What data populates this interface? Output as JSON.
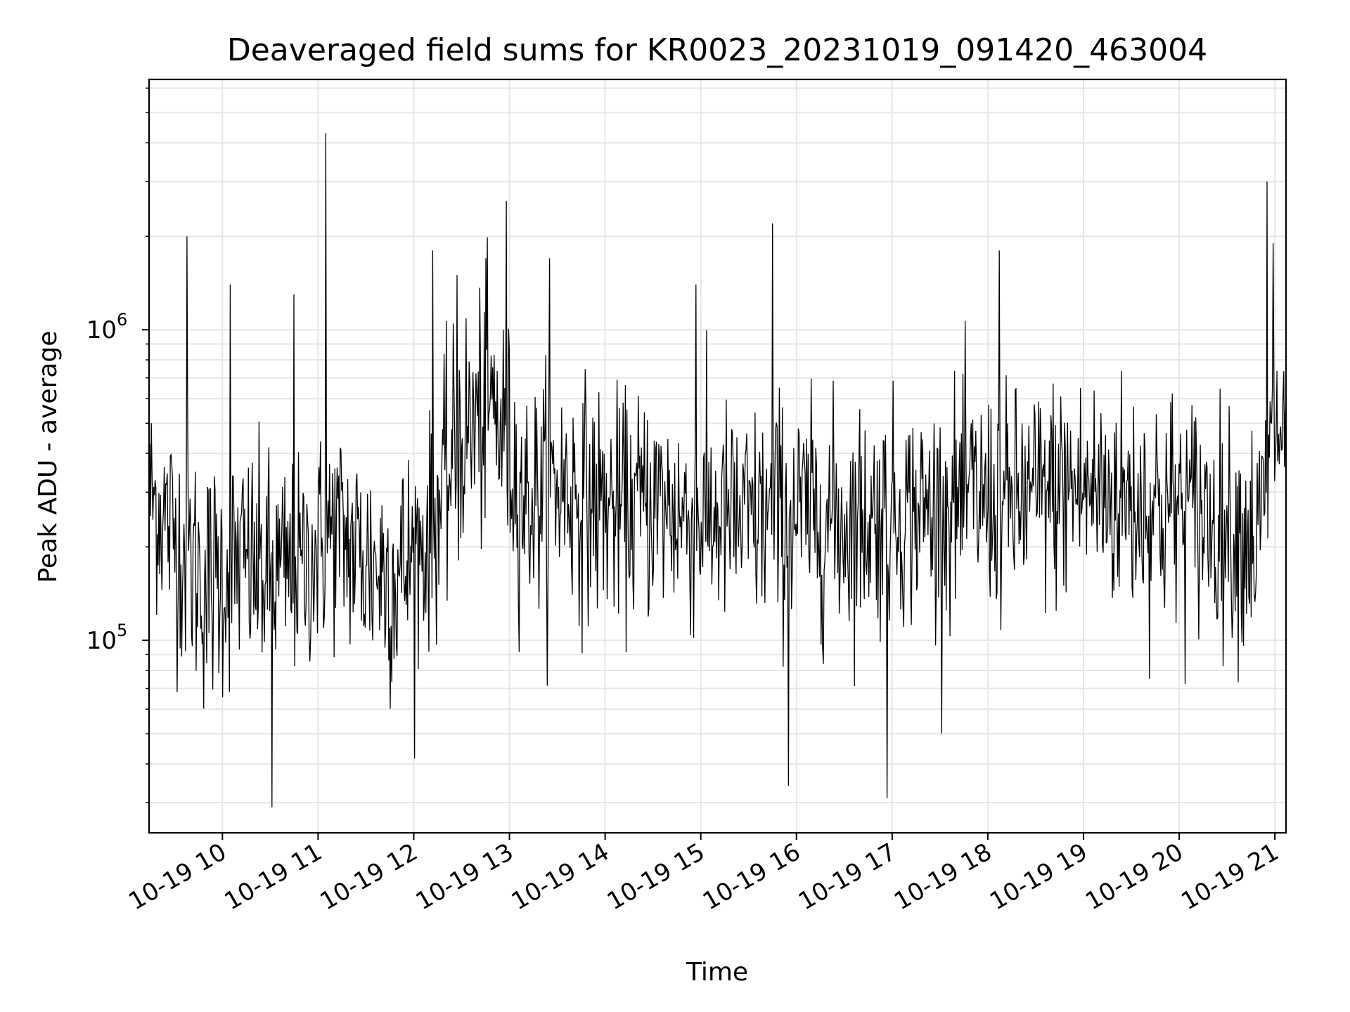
{
  "chart_data": {
    "type": "line",
    "title": "Deaveraged field sums for KR0023_20231019_091420_463004",
    "xlabel": "Time",
    "ylabel": "Peak ADU - average",
    "yscale": "log",
    "ylim": [
      24000,
      6400000
    ],
    "xlim": [
      "2023-10-19 09:14",
      "2023-10-19 21:07"
    ],
    "x_ticks": [
      {
        "time": "2023-10-19 10:00",
        "label": "10-19 10"
      },
      {
        "time": "2023-10-19 11:00",
        "label": "10-19 11"
      },
      {
        "time": "2023-10-19 12:00",
        "label": "10-19 12"
      },
      {
        "time": "2023-10-19 13:00",
        "label": "10-19 13"
      },
      {
        "time": "2023-10-19 14:00",
        "label": "10-19 14"
      },
      {
        "time": "2023-10-19 15:00",
        "label": "10-19 15"
      },
      {
        "time": "2023-10-19 16:00",
        "label": "10-19 16"
      },
      {
        "time": "2023-10-19 17:00",
        "label": "10-19 17"
      },
      {
        "time": "2023-10-19 18:00",
        "label": "10-19 18"
      },
      {
        "time": "2023-10-19 19:00",
        "label": "10-19 19"
      },
      {
        "time": "2023-10-19 20:00",
        "label": "10-19 20"
      },
      {
        "time": "2023-10-19 21:00",
        "label": "10-19 21"
      }
    ],
    "y_ticks": [
      {
        "value": 100000,
        "base": "10",
        "exp": "5"
      },
      {
        "value": 1000000,
        "base": "10",
        "exp": "6"
      }
    ],
    "grid": true,
    "line_color": "#000000",
    "grid_color": "#e6e6e6",
    "series": [
      {
        "x": [
          "2023-10-19 09:14",
          "2023-10-19 09:30",
          "2023-10-19 09:50",
          "2023-10-19 10:10",
          "2023-10-19 10:30",
          "2023-10-19 10:50",
          "2023-10-19 11:10",
          "2023-10-19 11:30",
          "2023-10-19 11:50",
          "2023-10-19 12:10",
          "2023-10-19 12:30",
          "2023-10-19 12:50",
          "2023-10-19 13:10",
          "2023-10-19 13:30",
          "2023-10-19 13:50",
          "2023-10-19 14:10",
          "2023-10-19 14:30",
          "2023-10-19 14:50",
          "2023-10-19 15:10",
          "2023-10-19 15:30",
          "2023-10-19 15:50",
          "2023-10-19 16:10",
          "2023-10-19 16:30",
          "2023-10-19 16:50",
          "2023-10-19 17:10",
          "2023-10-19 17:30",
          "2023-10-19 17:50",
          "2023-10-19 18:10",
          "2023-10-19 18:30",
          "2023-10-19 18:50",
          "2023-10-19 19:10",
          "2023-10-19 19:30",
          "2023-10-19 19:50",
          "2023-10-19 20:10",
          "2023-10-19 20:30",
          "2023-10-19 20:50",
          "2023-10-19 21:00",
          "2023-10-19 21:07"
        ],
        "y": [
          300000,
          220000,
          150000,
          180000,
          160000,
          170000,
          230000,
          180000,
          160000,
          220000,
          450000,
          560000,
          280000,
          320000,
          280000,
          260000,
          280000,
          250000,
          250000,
          240000,
          260000,
          250000,
          240000,
          250000,
          260000,
          260000,
          290000,
          270000,
          290000,
          310000,
          300000,
          280000,
          270000,
          260000,
          230000,
          210000,
          500000,
          450000
        ],
        "envelope_low": [
          140000,
          90000,
          60000,
          70000,
          60000,
          80000,
          90000,
          70000,
          60000,
          90000,
          150000,
          180000,
          110000,
          130000,
          110000,
          100000,
          100000,
          90000,
          90000,
          90000,
          90000,
          90000,
          80000,
          90000,
          100000,
          100000,
          110000,
          110000,
          110000,
          120000,
          110000,
          100000,
          90000,
          90000,
          90000,
          80000,
          200000,
          180000
        ],
        "envelope_high": [
          700000,
          550000,
          450000,
          430000,
          400000,
          420000,
          520000,
          480000,
          420000,
          500000,
          1100000,
          1300000,
          650000,
          800000,
          700000,
          560000,
          600000,
          550000,
          520000,
          520000,
          560000,
          520000,
          500000,
          520000,
          560000,
          560000,
          650000,
          620000,
          650000,
          720000,
          700000,
          650000,
          620000,
          560000,
          520000,
          500000,
          1100000,
          1000000
        ],
        "spikes": [
          {
            "time": "2023-10-19 09:38",
            "value": 2000000
          },
          {
            "time": "2023-10-19 10:05",
            "value": 1400000
          },
          {
            "time": "2023-10-19 10:31",
            "value": 29000
          },
          {
            "time": "2023-10-19 10:45",
            "value": 1300000
          },
          {
            "time": "2023-10-19 11:05",
            "value": 4300000
          },
          {
            "time": "2023-10-19 12:12",
            "value": 1800000
          },
          {
            "time": "2023-10-19 12:27",
            "value": 1500000
          },
          {
            "time": "2023-10-19 12:45",
            "value": 1700000
          },
          {
            "time": "2023-10-19 12:58",
            "value": 2600000
          },
          {
            "time": "2023-10-19 13:25",
            "value": 1700000
          },
          {
            "time": "2023-10-19 14:57",
            "value": 1400000
          },
          {
            "time": "2023-10-19 15:45",
            "value": 2200000
          },
          {
            "time": "2023-10-19 15:55",
            "value": 34000
          },
          {
            "time": "2023-10-19 16:57",
            "value": 31000
          },
          {
            "time": "2023-10-19 18:07",
            "value": 1800000
          },
          {
            "time": "2023-10-19 20:55",
            "value": 3000000
          },
          {
            "time": "2023-10-19 20:59",
            "value": 1900000
          }
        ]
      }
    ]
  }
}
